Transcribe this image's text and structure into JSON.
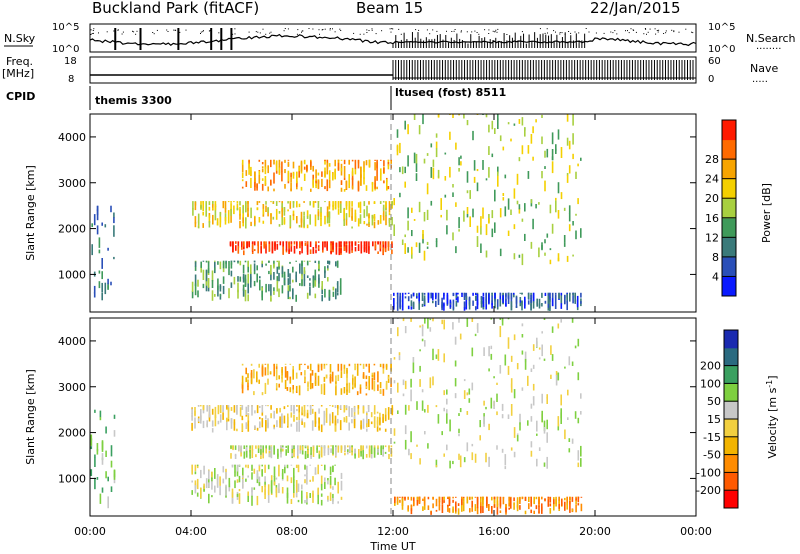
{
  "header": {
    "station": "Buckland Park (fitACF)",
    "beam": "Beam 15",
    "date": "22/Jan/2015"
  },
  "top_panels": {
    "nsky_label": "N.Sky",
    "nsky_ticks": [
      "10^5",
      "10^0"
    ],
    "nsearch_label": "N.Search",
    "nsearch_ticks": [
      "10^5",
      "10^0"
    ],
    "freq_label": "Freq.",
    "freq_unit": "[MHz]",
    "freq_ticks": [
      "18",
      "8"
    ],
    "nave_label": "Nave",
    "nave_ticks": [
      "60",
      "0"
    ],
    "cpid_label": "CPID",
    "cpid_modes": [
      {
        "name": "themis 3300",
        "start_hour": 0,
        "end_hour": 12
      },
      {
        "name": "ltuseq (fost) 8511",
        "start_hour": 12,
        "end_hour": 24
      }
    ]
  },
  "chart_data": [
    {
      "type": "heatmap",
      "quantity": "Power",
      "ylabel": "Slant Range [km]",
      "ylim": [
        180,
        4500
      ],
      "yticks": [
        "1000",
        "2000",
        "3000",
        "4000"
      ],
      "xlim": [
        0,
        24
      ],
      "colorbar": {
        "label": "Power [dB]",
        "ticks": [
          "4",
          "8",
          "12",
          "16",
          "20",
          "24",
          "28"
        ],
        "colors": [
          "#0a1aff",
          "#2a4fb8",
          "#3a7a7a",
          "#3f9a5a",
          "#a8d040",
          "#f4d000",
          "#f7a400",
          "#ff6a00",
          "#ff1a00"
        ]
      },
      "echo_regions": [
        {
          "t0": 5.5,
          "t1": 12.0,
          "r0": 1420,
          "r1": 1720,
          "level": 8
        },
        {
          "t0": 4.0,
          "t1": 12.0,
          "r0": 2000,
          "r1": 2600,
          "level": 5
        },
        {
          "t0": 6.0,
          "t1": 12.0,
          "r0": 2800,
          "r1": 3500,
          "level": 6
        },
        {
          "t0": 4.0,
          "t1": 10.0,
          "r0": 400,
          "r1": 1300,
          "level": 3
        },
        {
          "t0": 0.0,
          "t1": 1.0,
          "r0": 300,
          "r1": 2500,
          "level": 2
        },
        {
          "t0": 12.0,
          "t1": 19.5,
          "r0": 1200,
          "r1": 4500,
          "level": 4
        },
        {
          "t0": 12.0,
          "t1": 19.5,
          "r0": 200,
          "r1": 600,
          "level": 1
        }
      ]
    },
    {
      "type": "heatmap",
      "quantity": "Velocity",
      "ylabel": "Slant Range [km]",
      "ylim": [
        180,
        4500
      ],
      "yticks": [
        "1000",
        "2000",
        "3000",
        "4000"
      ],
      "xlim": [
        0,
        24
      ],
      "xticks": [
        "00:00",
        "04:00",
        "08:00",
        "12:00",
        "16:00",
        "20:00",
        "00:00"
      ],
      "xlabel": "Time UT",
      "colorbar": {
        "label": "Velocity [m s",
        "label_sup": "-1",
        "label_end": "]",
        "ticks": [
          "-200",
          "-100",
          "-50",
          "-15",
          "15",
          "50",
          "100",
          "200"
        ],
        "colors": [
          "#ff0000",
          "#ff5a00",
          "#ff8c00",
          "#f2b400",
          "#f2d040",
          "#c8c8c8",
          "#7ed040",
          "#3aa060",
          "#2a6a80",
          "#1a2ab0"
        ]
      },
      "echo_regions": [
        {
          "t0": 5.5,
          "t1": 12.0,
          "r0": 1420,
          "r1": 1720,
          "level": 5
        },
        {
          "t0": 4.0,
          "t1": 12.0,
          "r0": 2000,
          "r1": 2600,
          "level": 4
        },
        {
          "t0": 6.0,
          "t1": 12.0,
          "r0": 2800,
          "r1": 3500,
          "level": 3
        },
        {
          "t0": 4.0,
          "t1": 10.0,
          "r0": 400,
          "r1": 1300,
          "level": 5
        },
        {
          "t0": 0.0,
          "t1": 1.0,
          "r0": 300,
          "r1": 2500,
          "level": 6
        },
        {
          "t0": 12.0,
          "t1": 19.5,
          "r0": 1200,
          "r1": 4500,
          "level": 5
        },
        {
          "t0": 12.0,
          "t1": 19.5,
          "r0": 200,
          "r1": 600,
          "level": 2
        }
      ]
    }
  ]
}
